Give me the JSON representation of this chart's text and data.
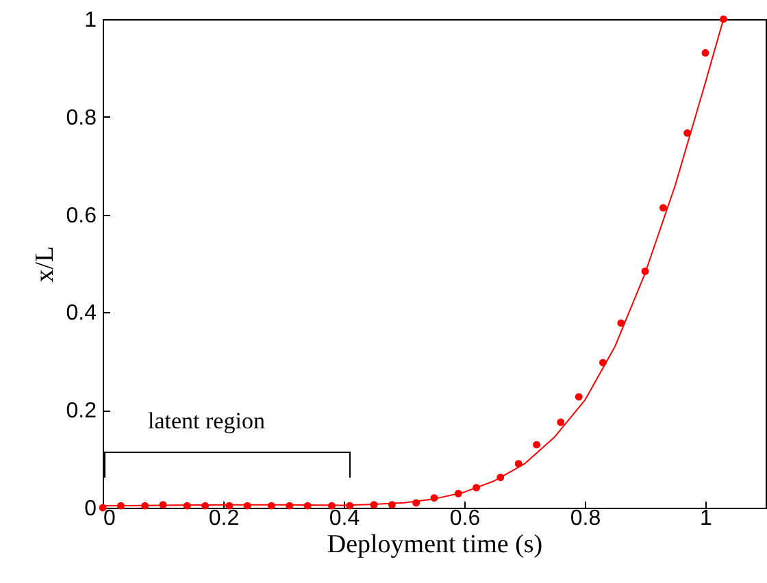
{
  "chart_data": {
    "type": "scatter",
    "xlabel": "Deployment time (s)",
    "ylabel": "x/L",
    "xlim": [
      0,
      1.1
    ],
    "xticks": [
      0,
      0.2,
      0.4,
      0.6,
      0.8,
      1
    ],
    "ylim": [
      0,
      1
    ],
    "yticks": [
      0,
      0.2,
      0.4,
      0.6,
      0.8,
      1
    ],
    "grid": false,
    "marker": "circle",
    "line_style": "solid",
    "annotations": [
      "latent region"
    ],
    "series": [
      {
        "color": "#ff0000",
        "x": [
          0,
          0.03,
          0.07,
          0.1,
          0.14,
          0.17,
          0.21,
          0.24,
          0.28,
          0.31,
          0.34,
          0.38,
          0.41,
          0.45,
          0.48,
          0.52,
          0.55,
          0.59,
          0.62,
          0.66,
          0.69,
          0.72,
          0.76,
          0.79,
          0.83,
          0.86,
          0.9,
          0.93,
          0.97,
          1.0,
          1.03
        ],
        "values": [
          0,
          0.004,
          0.004,
          0.006,
          0.004,
          0.004,
          0.004,
          0.004,
          0.004,
          0.004,
          0.004,
          0.004,
          0.004,
          0.006,
          0.006,
          0.01,
          0.02,
          0.029,
          0.041,
          0.062,
          0.09,
          0.129,
          0.175,
          0.227,
          0.297,
          0.378,
          0.484,
          0.614,
          0.767,
          0.931,
          1.0
        ]
      },
      {
        "type": "line",
        "marker": "none",
        "color": "#ff0000",
        "x": [
          0,
          0.1,
          0.2,
          0.3,
          0.4,
          0.45,
          0.5,
          0.55,
          0.6,
          0.65,
          0.7,
          0.75,
          0.8,
          0.85,
          0.9,
          0.95,
          1.0,
          1.03
        ],
        "values": [
          0.004,
          0.005,
          0.006,
          0.006,
          0.005,
          0.007,
          0.01,
          0.018,
          0.032,
          0.055,
          0.09,
          0.145,
          0.22,
          0.33,
          0.48,
          0.66,
          0.87,
          1.0
        ]
      }
    ]
  }
}
